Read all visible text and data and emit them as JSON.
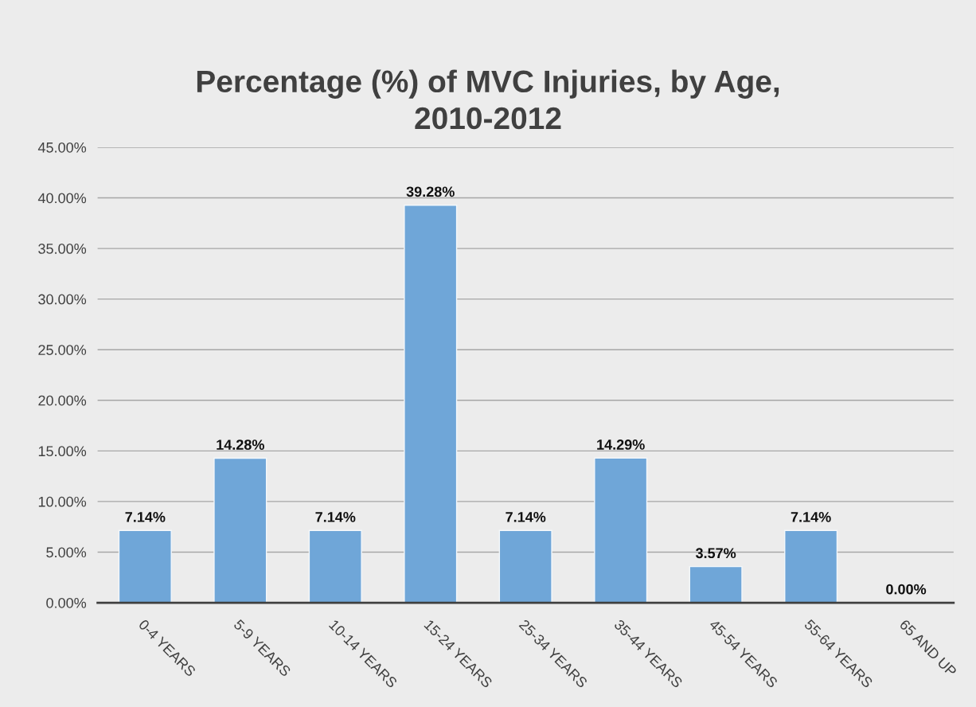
{
  "chart_data": {
    "type": "bar",
    "title": "Percentage (%) of MVC Injuries, by Age,\n2010-2012",
    "categories": [
      "0-4 YEARS",
      "5-9 YEARS",
      "10-14 YEARS",
      "15-24 YEARS",
      "25-34 YEARS",
      "35-44 YEARS",
      "45-54 YEARS",
      "55-64 YEARS",
      "65 AND UP"
    ],
    "values": [
      7.14,
      14.28,
      7.14,
      39.28,
      7.14,
      14.29,
      3.57,
      7.14,
      0.0
    ],
    "value_labels": [
      "7.14%",
      "14.28%",
      "7.14%",
      "39.28%",
      "7.14%",
      "14.29%",
      "3.57%",
      "7.14%",
      "0.00%"
    ],
    "color": "#6fa6d8",
    "ylim": [
      0,
      45
    ],
    "yticks": [
      {
        "value": 0,
        "label": "0.00%"
      },
      {
        "value": 5,
        "label": "5.00%"
      },
      {
        "value": 10,
        "label": "10.00%"
      },
      {
        "value": 15,
        "label": "15.00%"
      },
      {
        "value": 20,
        "label": "20.00%"
      },
      {
        "value": 25,
        "label": "25.00%"
      },
      {
        "value": 30,
        "label": "30.00%"
      },
      {
        "value": 35,
        "label": "35.00%"
      },
      {
        "value": 40,
        "label": "40.00%"
      },
      {
        "value": 45,
        "label": "45.00%"
      }
    ],
    "grid": "y"
  }
}
